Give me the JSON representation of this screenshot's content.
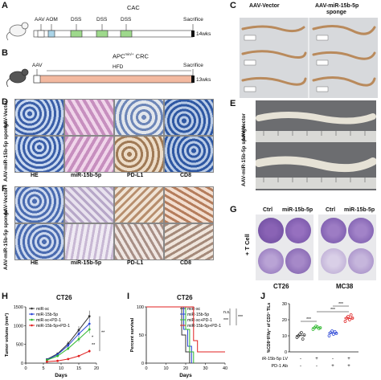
{
  "panels": {
    "A": {
      "label": "A",
      "title": "CAC",
      "markers": [
        "AAV",
        "AOM",
        "DSS",
        "DSS",
        "DSS",
        "Sacrifice"
      ],
      "end": "14wks"
    },
    "B": {
      "label": "B",
      "title": "APC⁰³⁰⁰ CRC",
      "title_main": "APC",
      "title_sup": "min/+",
      "title_tail": " CRC",
      "markers": [
        "AAV",
        "HFD",
        "Sacrifice"
      ],
      "end": "13wks"
    },
    "C": {
      "label": "C",
      "groups": [
        "AAV-Vector",
        "AAV-miR-15b-5p",
        "sponge"
      ]
    },
    "D": {
      "label": "D",
      "rows": [
        "AAV-Vector",
        "AAV-miR-15b-5p sponge"
      ],
      "cols": [
        "HE",
        "miR-15b-5p",
        "PD-L1",
        "CD8"
      ]
    },
    "E": {
      "label": "E",
      "rows": [
        "AAV-Vector",
        "AAV-miR-15b-5p sponge"
      ]
    },
    "F": {
      "label": "F",
      "rows": [
        "AAV-Vector",
        "AAV-miR-15b-5p sponge"
      ],
      "cols": [
        "HE",
        "miR-15b-5p",
        "PD-L1",
        "CD8"
      ]
    },
    "G": {
      "label": "G",
      "cols": [
        "Ctrl",
        "miR-15b-5p",
        "Ctrl",
        "miR-15b-5p"
      ],
      "row": "+ T Cell",
      "lines": [
        "CT26",
        "MC38"
      ]
    },
    "H": {
      "label": "H",
      "title": "CT26",
      "ylabel": "Tumor volume (mm³)",
      "xlabel": "Days",
      "sig": [
        "**",
        "*",
        "**"
      ]
    },
    "I": {
      "label": "I",
      "title": "CT26",
      "ylabel": "Percent survival",
      "xlabel": "Days",
      "sig": [
        "n.s.",
        "***",
        "***"
      ]
    },
    "J": {
      "label": "J",
      "ylabel": "%CD8⁺IFNγ⁺ of CD3⁺ TILs",
      "row1": "miR-15b-5p LV",
      "row2": "PD-1 Ab",
      "row1_signs": [
        "-",
        "+",
        "-",
        "+"
      ],
      "row2_signs": [
        "-",
        "-",
        "+",
        "+"
      ],
      "sig": [
        "***",
        "***",
        "***"
      ]
    }
  },
  "chart_data": [
    {
      "type": "line",
      "title": "CT26",
      "xlabel": "Days",
      "ylabel": "Tumor volume (mm³)",
      "xlim": [
        0,
        20
      ],
      "ylim": [
        0,
        1500
      ],
      "x_ticks": [
        0,
        5,
        10,
        15,
        20
      ],
      "y_ticks": [
        0,
        500,
        1000,
        1500
      ],
      "x": [
        6,
        9,
        12,
        15,
        18
      ],
      "series": [
        {
          "name": "miR-sc",
          "color": "#333333",
          "values": [
            100,
            250,
            520,
            880,
            1250
          ]
        },
        {
          "name": "miR-15b-5p",
          "color": "#2a45d6",
          "values": [
            90,
            230,
            470,
            780,
            1050
          ]
        },
        {
          "name": "miR-sc+PD-1",
          "color": "#2fb82f",
          "values": [
            80,
            190,
            390,
            640,
            900
          ]
        },
        {
          "name": "miR-15b-5p+PD-1",
          "color": "#e02020",
          "values": [
            40,
            60,
            110,
            190,
            320
          ]
        }
      ]
    },
    {
      "type": "line",
      "title": "CT26",
      "xlabel": "Days",
      "ylabel": "Percent survival",
      "xlim": [
        0,
        40
      ],
      "ylim": [
        0,
        100
      ],
      "x_ticks": [
        0,
        10,
        20,
        30,
        40
      ],
      "y_ticks": [
        0,
        50,
        100
      ],
      "series": [
        {
          "name": "miR-sc",
          "color": "#333333",
          "x": [
            0,
            18,
            18,
            20,
            20,
            22,
            22
          ],
          "values": [
            100,
            100,
            50,
            50,
            20,
            20,
            0
          ]
        },
        {
          "name": "miR-15b-5p",
          "color": "#2a45d6",
          "x": [
            0,
            19,
            19,
            21,
            21,
            23,
            23
          ],
          "values": [
            100,
            100,
            60,
            60,
            30,
            30,
            0
          ]
        },
        {
          "name": "miR-sc+PD-1",
          "color": "#2fb82f",
          "x": [
            0,
            20,
            20,
            22,
            22,
            24,
            24
          ],
          "values": [
            100,
            100,
            60,
            60,
            20,
            20,
            0
          ]
        },
        {
          "name": "miR-15b-5p+PD-1",
          "color": "#e02020",
          "x": [
            0,
            24,
            24,
            26,
            26,
            40
          ],
          "values": [
            100,
            100,
            40,
            40,
            20,
            20
          ]
        }
      ]
    },
    {
      "type": "scatter",
      "ylabel": "%CD8⁺IFNγ⁺ of CD3⁺ TILs",
      "ylim": [
        0,
        30
      ],
      "y_ticks": [
        0,
        10,
        20,
        30
      ],
      "groups": [
        {
          "color": "#333333",
          "values": [
            9,
            10,
            11,
            12,
            8,
            10.5
          ]
        },
        {
          "color": "#2fb82f",
          "values": [
            14,
            15,
            16,
            15.5,
            14.5,
            15
          ]
        },
        {
          "color": "#2a45d6",
          "values": [
            10,
            12,
            13,
            11,
            12.5,
            11.5
          ]
        },
        {
          "color": "#e02020",
          "values": [
            19,
            21,
            22,
            20,
            23,
            21
          ]
        }
      ]
    }
  ]
}
